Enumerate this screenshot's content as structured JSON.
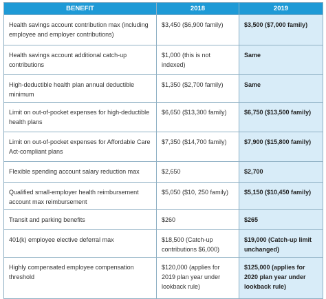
{
  "table": {
    "header": [
      "BENEFIT",
      "2018",
      "2019"
    ],
    "rows": [
      [
        "Health savings account contribution max (including employee and employer contributions)",
        "$3,450 ($6,900 family)",
        "$3,500 ($7,000 family)"
      ],
      [
        "Health savings account additional catch-up contributions",
        "$1,000 (this is not indexed)",
        "Same"
      ],
      [
        "High-deductible health plan annual deductible minimum",
        "$1,350 ($2,700 family)",
        "Same"
      ],
      [
        "Limit on out-of-pocket expenses for high-deductible health plans",
        "$6,650 ($13,300 family)",
        "$6,750 ($13,500 family)"
      ],
      [
        "Limit on out-of-pocket expenses for Affordable Care Act-compliant plans",
        "$7,350 ($14,700 family)",
        "$7,900 ($15,800 family)"
      ],
      [
        "Flexible spending account salary reduction max",
        "$2,650",
        "$2,700"
      ],
      [
        "Qualified small-employer health reimbursement account max reimbursement",
        "$5,050 ($10, 250 family)",
        "$5,150 ($10,450 family)"
      ],
      [
        "Transit and parking benefits",
        "$260",
        "$265"
      ],
      [
        "401(k) employee elective deferral max",
        "$18,500 (Catch-up contributions $6,000)",
        "$19,000 (Catch-up limit unchanged)"
      ],
      [
        "Highly compensated employee compensation threshold",
        "$120,000 (applies for 2019 plan year under lookback rule)",
        "$125,000 (applies for 2020 plan year under lookback rule)"
      ]
    ]
  }
}
